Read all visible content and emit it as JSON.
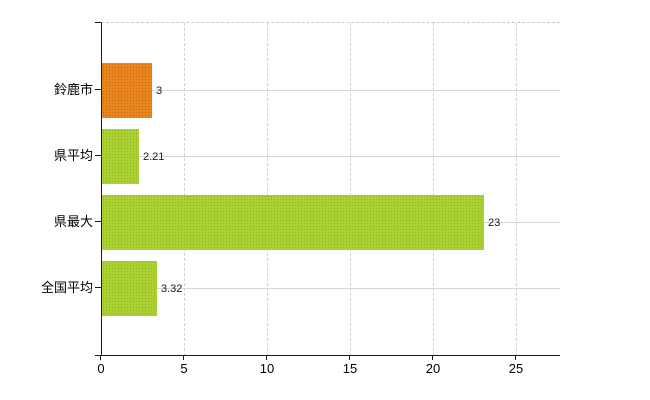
{
  "chart_data": {
    "type": "bar",
    "orientation": "horizontal",
    "categories": [
      "鈴鹿市",
      "県平均",
      "県最大",
      "全国平均"
    ],
    "values": [
      3,
      2.21,
      23,
      3.32
    ],
    "value_labels": [
      "3",
      "2.21",
      "23",
      "3.32"
    ],
    "bar_styles": [
      "highlight",
      "normal",
      "normal",
      "normal"
    ],
    "x_ticks": [
      0,
      5,
      10,
      15,
      20,
      25
    ],
    "x_tick_labels": [
      "0",
      "5",
      "10",
      "15",
      "20",
      "25"
    ],
    "xlim": [
      0,
      27.65
    ],
    "grid": true,
    "legend": false,
    "colors": {
      "bar_highlight": "#e8861e",
      "bar_highlight_dots": "#be5014",
      "bar_normal": "#abd032",
      "bar_normal_dots": "#769e1c",
      "gridline": "#d6d6d6",
      "axis": "#1a1a1a",
      "text": "#000000",
      "background": "#ffffff"
    }
  }
}
